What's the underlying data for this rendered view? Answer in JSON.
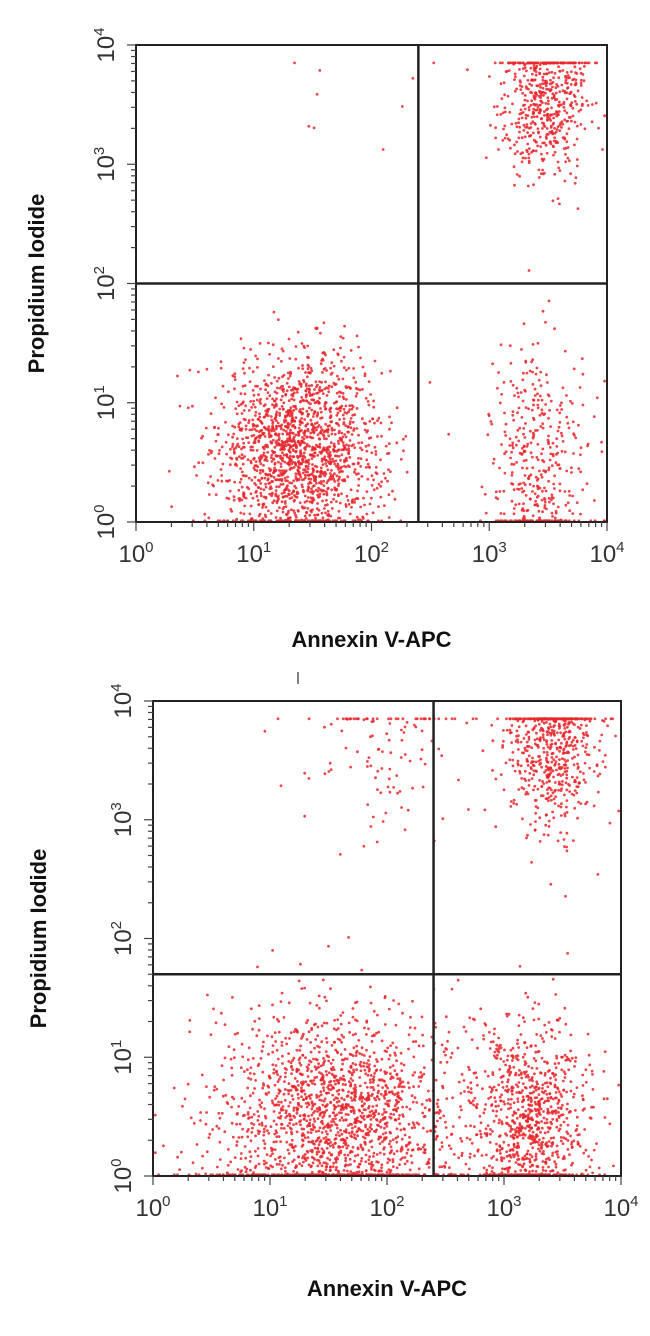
{
  "chart_data": [
    {
      "type": "scatter",
      "xlabel": "Annexin V-APC",
      "ylabel": "Propidium Iodide",
      "xscale": "log",
      "yscale": "log",
      "xlim": [
        1,
        10000
      ],
      "ylim": [
        1,
        10000
      ],
      "x_tick_labels": [
        {
          "base": "10",
          "exp": "0"
        },
        {
          "base": "10",
          "exp": "1"
        },
        {
          "base": "10",
          "exp": "2"
        },
        {
          "base": "10",
          "exp": "3"
        },
        {
          "base": "10",
          "exp": "4"
        }
      ],
      "y_tick_labels": [
        {
          "base": "10",
          "exp": "0"
        },
        {
          "base": "10",
          "exp": "1"
        },
        {
          "base": "10",
          "exp": "2"
        },
        {
          "base": "10",
          "exp": "3"
        },
        {
          "base": "10",
          "exp": "4"
        }
      ],
      "quadrant_gate": {
        "x": 250,
        "y": 100
      },
      "point_color": "#e8262b",
      "populations": [
        {
          "quadrant": "lower-left",
          "center": [
            25,
            4
          ],
          "spread_decades": [
            0.35,
            0.4
          ],
          "approx_count": 1700
        },
        {
          "quadrant": "lower-right",
          "center": [
            2500,
            3
          ],
          "spread_decades": [
            0.2,
            0.5
          ],
          "approx_count": 420
        },
        {
          "quadrant": "upper-right",
          "center": [
            3000,
            3500
          ],
          "spread_decades": [
            0.18,
            0.35
          ],
          "approx_count": 560
        },
        {
          "quadrant": "upper-left",
          "center": [
            60,
            4000
          ],
          "spread_decades": [
            0.4,
            0.5
          ],
          "approx_count": 10
        }
      ]
    },
    {
      "type": "scatter",
      "xlabel": "Annexin V-APC",
      "ylabel": "Propidium Iodide",
      "xscale": "log",
      "yscale": "log",
      "xlim": [
        1,
        10000
      ],
      "ylim": [
        1,
        10000
      ],
      "x_tick_labels": [
        {
          "base": "10",
          "exp": "0"
        },
        {
          "base": "10",
          "exp": "1"
        },
        {
          "base": "10",
          "exp": "2"
        },
        {
          "base": "10",
          "exp": "3"
        },
        {
          "base": "10",
          "exp": "4"
        }
      ],
      "y_tick_labels": [
        {
          "base": "10",
          "exp": "0"
        },
        {
          "base": "10",
          "exp": "1"
        },
        {
          "base": "10",
          "exp": "2"
        },
        {
          "base": "10",
          "exp": "3"
        },
        {
          "base": "10",
          "exp": "4"
        }
      ],
      "quadrant_gate": {
        "x": 250,
        "y": 50
      },
      "point_color": "#e8262b",
      "populations": [
        {
          "quadrant": "lower-left",
          "center": [
            35,
            3
          ],
          "spread_decades": [
            0.5,
            0.45
          ],
          "approx_count": 1800
        },
        {
          "quadrant": "lower-right",
          "center": [
            1600,
            3
          ],
          "spread_decades": [
            0.25,
            0.45
          ],
          "approx_count": 950
        },
        {
          "quadrant": "upper-right",
          "center": [
            2500,
            4000
          ],
          "spread_decades": [
            0.2,
            0.35
          ],
          "approx_count": 600
        },
        {
          "quadrant": "upper-left",
          "center": [
            100,
            4500
          ],
          "spread_decades": [
            0.35,
            0.4
          ],
          "approx_count": 120
        }
      ]
    }
  ]
}
